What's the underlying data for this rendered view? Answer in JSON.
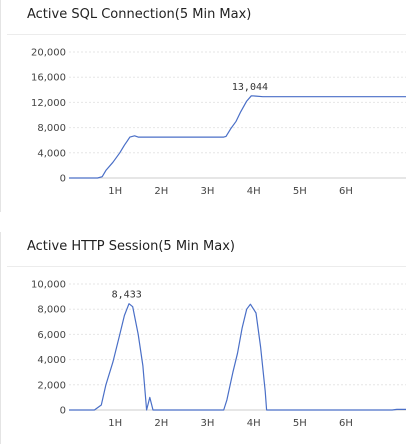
{
  "panels": [
    {
      "title": "Active SQL Connection(5 Min Max)"
    },
    {
      "title": "Active HTTP Session(5 Min Max)"
    }
  ],
  "chart_data": [
    {
      "type": "line",
      "title": "Active SQL Connection(5 Min Max)",
      "xlabel": "",
      "ylabel": "",
      "x_unit": "hours",
      "xlim": [
        0,
        7.3
      ],
      "ylim": [
        0,
        20000
      ],
      "x_ticks": [
        1,
        2,
        3,
        4,
        5,
        6
      ],
      "x_tick_labels": [
        "1H",
        "2H",
        "3H",
        "4H",
        "5H",
        "6H"
      ],
      "y_ticks": [
        0,
        4000,
        8000,
        12000,
        16000,
        20000
      ],
      "y_tick_labels": [
        "0",
        "4,000",
        "8,000",
        "12,000",
        "16,000",
        "20,000"
      ],
      "grid": true,
      "line_color": "#4a6fc7",
      "annotations": [
        {
          "x": 3.92,
          "y": 13044,
          "text": "13,044"
        }
      ],
      "series": [
        {
          "points": [
            [
              0.0,
              0
            ],
            [
              0.4,
              0
            ],
            [
              0.62,
              0
            ],
            [
              0.72,
              200
            ],
            [
              0.8,
              1200
            ],
            [
              0.95,
              2500
            ],
            [
              1.1,
              4000
            ],
            [
              1.2,
              5200
            ],
            [
              1.32,
              6500
            ],
            [
              1.42,
              6700
            ],
            [
              1.5,
              6500
            ],
            [
              2.0,
              6500
            ],
            [
              2.5,
              6500
            ],
            [
              3.0,
              6500
            ],
            [
              3.35,
              6500
            ],
            [
              3.4,
              6600
            ],
            [
              3.5,
              7800
            ],
            [
              3.62,
              9000
            ],
            [
              3.72,
              10500
            ],
            [
              3.85,
              12200
            ],
            [
              3.95,
              13044
            ],
            [
              4.05,
              13000
            ],
            [
              4.2,
              12900
            ],
            [
              5.0,
              12900
            ],
            [
              6.0,
              12900
            ],
            [
              7.3,
              12900
            ]
          ]
        }
      ]
    },
    {
      "type": "line",
      "title": "Active HTTP Session(5 Min Max)",
      "xlabel": "",
      "ylabel": "",
      "x_unit": "hours",
      "xlim": [
        0,
        7.3
      ],
      "ylim": [
        0,
        10000
      ],
      "x_ticks": [
        1,
        2,
        3,
        4,
        5,
        6
      ],
      "x_tick_labels": [
        "1H",
        "2H",
        "3H",
        "4H",
        "5H",
        "6H"
      ],
      "y_ticks": [
        0,
        2000,
        4000,
        6000,
        8000,
        10000
      ],
      "y_tick_labels": [
        "0",
        "2,000",
        "4,000",
        "6,000",
        "8,000",
        "10,000"
      ],
      "grid": true,
      "line_color": "#4a6fc7",
      "annotations": [
        {
          "x": 1.25,
          "y": 8433,
          "text": "8,433"
        }
      ],
      "series": [
        {
          "points": [
            [
              0.0,
              0
            ],
            [
              0.55,
              0
            ],
            [
              0.7,
              400
            ],
            [
              0.8,
              2000
            ],
            [
              0.95,
              3800
            ],
            [
              1.1,
              6000
            ],
            [
              1.2,
              7500
            ],
            [
              1.3,
              8433
            ],
            [
              1.38,
              8200
            ],
            [
              1.5,
              6000
            ],
            [
              1.6,
              3500
            ],
            [
              1.68,
              0
            ],
            [
              1.75,
              1000
            ],
            [
              1.82,
              0
            ],
            [
              1.95,
              0
            ],
            [
              2.5,
              0
            ],
            [
              3.0,
              0
            ],
            [
              3.35,
              0
            ],
            [
              3.42,
              800
            ],
            [
              3.55,
              3000
            ],
            [
              3.65,
              4500
            ],
            [
              3.75,
              6500
            ],
            [
              3.85,
              8000
            ],
            [
              3.93,
              8400
            ],
            [
              4.05,
              7700
            ],
            [
              4.15,
              5000
            ],
            [
              4.25,
              1500
            ],
            [
              4.28,
              0
            ],
            [
              5.0,
              0
            ],
            [
              6.0,
              0
            ],
            [
              7.0,
              0
            ],
            [
              7.1,
              50
            ],
            [
              7.3,
              50
            ]
          ]
        }
      ]
    }
  ]
}
